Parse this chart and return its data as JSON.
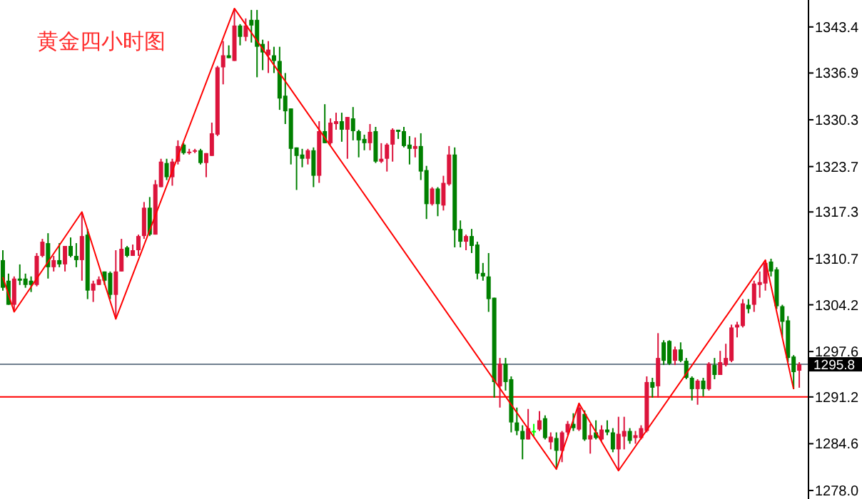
{
  "chart_data": {
    "type": "candlestick",
    "title": "黄金四小时图",
    "categories": [
      null,
      null,
      null,
      null,
      null,
      null,
      null,
      null,
      null,
      null,
      null,
      null,
      null,
      null,
      null,
      null,
      null,
      null,
      null,
      null,
      null,
      null,
      null,
      null,
      null,
      null,
      null,
      null,
      null,
      null,
      null,
      null,
      null,
      null,
      null,
      null,
      null,
      null,
      null,
      null,
      null,
      null,
      null,
      null,
      null,
      null,
      null,
      null,
      null,
      null,
      null,
      null,
      null,
      null,
      null,
      null,
      null,
      null,
      null,
      null,
      null,
      null,
      null,
      null,
      null,
      null,
      null,
      null,
      null,
      null,
      null,
      null,
      null,
      null,
      null,
      null,
      null,
      null,
      null,
      null,
      null,
      null,
      null,
      null,
      null,
      null,
      null,
      null,
      null,
      null,
      null,
      null,
      null,
      null,
      null,
      null,
      null,
      null,
      null,
      null,
      null,
      null,
      null,
      null,
      null,
      null,
      null,
      null,
      null,
      null,
      null,
      null,
      null,
      null,
      null,
      null,
      null,
      null,
      null,
      null,
      null,
      null,
      null,
      null,
      null,
      null,
      null,
      null,
      null,
      null,
      null,
      null,
      null,
      null,
      null,
      null,
      null,
      null,
      null,
      null,
      null,
      null
    ],
    "ohlc": [
      [
        1310.5,
        1311.9,
        1306.2,
        1306.6
      ],
      [
        1307.6,
        1308.6,
        1304.2,
        1304.2
      ],
      [
        1304.2,
        1308.2,
        1303.2,
        1307.9
      ],
      [
        1307.9,
        1309.9,
        1307.0,
        1307.6
      ],
      [
        1307.9,
        1308.6,
        1306.6,
        1307.0
      ],
      [
        1307.6,
        1308.2,
        1306.0,
        1307.0
      ],
      [
        1307.0,
        1311.5,
        1306.8,
        1311.1
      ],
      [
        1311.1,
        1313.5,
        1310.9,
        1313.1
      ],
      [
        1312.9,
        1314.3,
        1307.9,
        1309.5
      ],
      [
        1309.5,
        1311.1,
        1308.9,
        1310.5
      ],
      [
        1310.5,
        1312.9,
        1309.5,
        1309.9
      ],
      [
        1309.9,
        1312.5,
        1308.9,
        1312.5
      ],
      [
        1312.5,
        1313.7,
        1310.9,
        1311.1
      ],
      [
        1311.1,
        1312.9,
        1309.5,
        1310.5
      ],
      [
        1310.5,
        1317.3,
        1307.6,
        1313.9
      ],
      [
        1314.1,
        1314.9,
        1305.0,
        1306.2
      ],
      [
        1306.2,
        1307.6,
        1304.6,
        1307.2
      ],
      [
        1307.0,
        1308.2,
        1307.0,
        1307.8
      ],
      [
        1308.9,
        1308.9,
        1307.0,
        1307.6
      ],
      [
        1308.7,
        1308.9,
        1305.0,
        1305.6
      ],
      [
        1305.6,
        1311.9,
        1302.2,
        1308.9
      ],
      [
        1308.9,
        1313.5,
        1308.9,
        1312.1
      ],
      [
        1312.3,
        1312.5,
        1310.9,
        1311.1
      ],
      [
        1311.1,
        1312.7,
        1311.1,
        1311.9
      ],
      [
        1311.9,
        1314.1,
        1311.1,
        1313.9
      ],
      [
        1313.9,
        1318.7,
        1313.5,
        1317.9
      ],
      [
        1317.9,
        1319.4,
        1313.9,
        1314.1
      ],
      [
        1314.1,
        1321.8,
        1314.1,
        1321.2
      ],
      [
        1320.8,
        1324.8,
        1320.8,
        1324.4
      ],
      [
        1324.2,
        1324.8,
        1321.8,
        1322.2
      ],
      [
        1322.2,
        1324.8,
        1321.0,
        1324.4
      ],
      [
        1324.4,
        1327.4,
        1324.0,
        1326.6
      ],
      [
        1326.8,
        1327.0,
        1325.4,
        1325.6
      ],
      [
        1325.6,
        1326.2,
        1325.4,
        1325.8
      ],
      [
        1325.8,
        1326.2,
        1325.6,
        1326.0
      ],
      [
        1326.0,
        1326.2,
        1324.0,
        1324.2
      ],
      [
        1324.2,
        1325.6,
        1322.2,
        1325.6
      ],
      [
        1325.2,
        1329.9,
        1325.2,
        1328.4
      ],
      [
        1328.2,
        1337.9,
        1328.0,
        1337.7
      ],
      [
        1337.7,
        1341.4,
        1335.3,
        1339.4
      ],
      [
        1339.4,
        1340.8,
        1339.0,
        1339.0
      ],
      [
        1338.6,
        1346.0,
        1338.6,
        1343.6
      ],
      [
        1343.6,
        1343.8,
        1340.8,
        1342.0
      ],
      [
        1342.0,
        1344.6,
        1341.4,
        1343.6
      ],
      [
        1344.4,
        1345.8,
        1341.2,
        1343.6
      ],
      [
        1344.4,
        1345.8,
        1336.3,
        1340.6
      ],
      [
        1341.0,
        1341.6,
        1337.3,
        1339.8
      ],
      [
        1339.4,
        1341.4,
        1336.9,
        1340.2
      ],
      [
        1339.4,
        1340.6,
        1336.9,
        1338.6
      ],
      [
        1338.6,
        1340.6,
        1331.7,
        1333.3
      ],
      [
        1333.7,
        1336.9,
        1329.7,
        1331.5
      ],
      [
        1331.9,
        1331.9,
        1324.0,
        1326.2
      ],
      [
        1326.4,
        1326.4,
        1320.4,
        1325.2
      ],
      [
        1325.4,
        1326.2,
        1323.6,
        1324.8
      ],
      [
        1324.8,
        1326.2,
        1324.0,
        1326.0
      ],
      [
        1326.0,
        1326.4,
        1320.8,
        1322.4
      ],
      [
        1322.4,
        1330.1,
        1321.4,
        1328.7
      ],
      [
        1328.7,
        1332.5,
        1327.0,
        1327.0
      ],
      [
        1327.0,
        1330.5,
        1326.8,
        1329.9
      ],
      [
        1329.7,
        1331.3,
        1328.9,
        1330.1
      ],
      [
        1330.1,
        1331.3,
        1327.2,
        1328.9
      ],
      [
        1328.9,
        1330.7,
        1324.8,
        1330.7
      ],
      [
        1330.5,
        1332.1,
        1327.4,
        1328.7
      ],
      [
        1328.7,
        1328.9,
        1325.0,
        1327.4
      ],
      [
        1327.6,
        1328.2,
        1326.0,
        1327.0
      ],
      [
        1327.0,
        1329.7,
        1326.0,
        1328.6
      ],
      [
        1328.7,
        1329.3,
        1324.2,
        1324.4
      ],
      [
        1324.4,
        1327.0,
        1324.2,
        1324.8
      ],
      [
        1324.8,
        1327.0,
        1323.0,
        1326.8
      ],
      [
        1326.8,
        1329.1,
        1324.4,
        1328.9
      ],
      [
        1328.9,
        1328.9,
        1327.6,
        1328.6
      ],
      [
        1328.7,
        1329.3,
        1326.4,
        1326.6
      ],
      [
        1326.8,
        1328.0,
        1324.0,
        1326.2
      ],
      [
        1326.2,
        1327.8,
        1325.0,
        1326.6
      ],
      [
        1326.6,
        1328.4,
        1321.8,
        1323.0
      ],
      [
        1323.2,
        1323.8,
        1316.3,
        1318.4
      ],
      [
        1318.4,
        1320.8,
        1318.2,
        1320.6
      ],
      [
        1320.6,
        1320.8,
        1316.7,
        1318.4
      ],
      [
        1318.2,
        1322.4,
        1317.5,
        1321.4
      ],
      [
        1321.2,
        1326.6,
        1321.0,
        1325.4
      ],
      [
        1325.4,
        1326.4,
        1312.3,
        1314.7
      ],
      [
        1314.9,
        1316.1,
        1312.3,
        1313.1
      ],
      [
        1313.1,
        1314.1,
        1311.9,
        1313.9
      ],
      [
        1313.9,
        1314.9,
        1311.5,
        1312.5
      ],
      [
        1312.7,
        1313.1,
        1307.8,
        1308.6
      ],
      [
        1308.7,
        1310.1,
        1307.6,
        1308.2
      ],
      [
        1308.2,
        1311.5,
        1303.2,
        1305.0
      ],
      [
        1305.2,
        1305.2,
        1291.1,
        1293.3
      ],
      [
        1292.7,
        1296.7,
        1289.7,
        1295.9
      ],
      [
        1295.9,
        1296.7,
        1292.1,
        1293.3
      ],
      [
        1293.7,
        1294.1,
        1286.2,
        1287.6
      ],
      [
        1287.6,
        1289.7,
        1285.8,
        1286.4
      ],
      [
        1286.4,
        1287.2,
        1282.4,
        1285.2
      ],
      [
        1285.2,
        1289.5,
        1285.2,
        1286.8
      ],
      [
        1286.4,
        1287.4,
        1285.6,
        1286.4
      ],
      [
        1286.6,
        1289.2,
        1286.4,
        1287.9
      ],
      [
        1288.2,
        1288.6,
        1285.2,
        1285.4
      ],
      [
        1284.8,
        1286.2,
        1283.8,
        1285.6
      ],
      [
        1285.4,
        1286.2,
        1281.0,
        1283.6
      ],
      [
        1283.6,
        1286.4,
        1282.0,
        1286.2
      ],
      [
        1286.2,
        1287.8,
        1285.8,
        1287.4
      ],
      [
        1287.4,
        1288.9,
        1286.4,
        1286.8
      ],
      [
        1286.6,
        1290.3,
        1286.4,
        1289.7
      ],
      [
        1288.8,
        1289.3,
        1285.0,
        1285.2
      ],
      [
        1285.2,
        1287.4,
        1283.2,
        1285.8
      ],
      [
        1286.2,
        1287.9,
        1285.2,
        1285.4
      ],
      [
        1285.2,
        1287.2,
        1285.0,
        1286.6
      ],
      [
        1286.6,
        1287.9,
        1285.8,
        1286.2
      ],
      [
        1286.2,
        1286.8,
        1283.4,
        1283.8
      ],
      [
        1283.8,
        1288.4,
        1280.8,
        1286.0
      ],
      [
        1285.6,
        1288.4,
        1283.8,
        1286.4
      ],
      [
        1286.4,
        1286.8,
        1284.6,
        1285.0
      ],
      [
        1285.4,
        1286.4,
        1284.6,
        1285.8
      ],
      [
        1285.4,
        1287.2,
        1285.2,
        1286.8
      ],
      [
        1286.4,
        1294.1,
        1286.2,
        1293.3
      ],
      [
        1293.3,
        1293.9,
        1291.1,
        1292.5
      ],
      [
        1292.7,
        1300.2,
        1291.1,
        1296.7
      ],
      [
        1298.9,
        1299.2,
        1295.7,
        1296.3
      ],
      [
        1299.1,
        1299.2,
        1295.7,
        1295.9
      ],
      [
        1296.3,
        1298.3,
        1295.7,
        1297.9
      ],
      [
        1297.9,
        1298.9,
        1296.1,
        1296.3
      ],
      [
        1296.3,
        1296.7,
        1293.7,
        1293.9
      ],
      [
        1293.9,
        1294.1,
        1290.7,
        1292.3
      ],
      [
        1292.3,
        1293.7,
        1290.1,
        1293.5
      ],
      [
        1293.5,
        1293.9,
        1291.3,
        1292.3
      ],
      [
        1292.3,
        1296.1,
        1292.1,
        1295.9
      ],
      [
        1295.7,
        1296.7,
        1293.7,
        1294.3
      ],
      [
        1294.3,
        1297.7,
        1294.3,
        1296.1
      ],
      [
        1295.7,
        1298.7,
        1295.5,
        1296.7
      ],
      [
        1296.3,
        1301.4,
        1296.1,
        1301.0
      ],
      [
        1301.0,
        1301.8,
        1299.6,
        1301.4
      ],
      [
        1301.2,
        1305.0,
        1301.0,
        1304.4
      ],
      [
        1304.2,
        1305.0,
        1303.0,
        1303.6
      ],
      [
        1304.2,
        1307.6,
        1303.2,
        1307.2
      ],
      [
        1307.0,
        1308.9,
        1305.2,
        1307.4
      ],
      [
        1307.2,
        1310.5,
        1306.2,
        1310.1
      ],
      [
        1310.3,
        1310.7,
        1308.2,
        1308.9
      ],
      [
        1309.2,
        1309.5,
        1303.6,
        1304.0
      ],
      [
        1304.0,
        1304.2,
        1299.6,
        1301.8
      ],
      [
        1302.0,
        1302.6,
        1296.1,
        1296.7
      ],
      [
        1296.9,
        1297.1,
        1292.3,
        1294.7
      ],
      [
        1294.9,
        1296.1,
        1292.5,
        1295.8
      ]
    ],
    "colors": [
      "#008000",
      "#008000",
      "#dc143c",
      "#008000",
      "#008000",
      "#008000",
      "#dc143c",
      "#dc143c",
      "#008000",
      "#dc143c",
      "#008000",
      "#dc143c",
      "#008000",
      "#008000",
      "#dc143c",
      "#008000",
      "#dc143c",
      "#dc143c",
      "#008000",
      "#008000",
      "#dc143c",
      "#dc143c",
      "#008000",
      "#dc143c",
      "#dc143c",
      "#dc143c",
      "#008000",
      "#dc143c",
      "#dc143c",
      "#008000",
      "#dc143c",
      "#dc143c",
      "#008000",
      "#dc143c",
      "#dc143c",
      "#008000",
      "#dc143c",
      "#dc143c",
      "#dc143c",
      "#dc143c",
      "#008000",
      "#dc143c",
      "#008000",
      "#dc143c",
      "#008000",
      "#008000",
      "#008000",
      "#dc143c",
      "#008000",
      "#008000",
      "#008000",
      "#008000",
      "#008000",
      "#008000",
      "#dc143c",
      "#008000",
      "#dc143c",
      "#008000",
      "#dc143c",
      "#dc143c",
      "#008000",
      "#dc143c",
      "#008000",
      "#008000",
      "#008000",
      "#dc143c",
      "#008000",
      "#dc143c",
      "#dc143c",
      "#dc143c",
      "#008000",
      "#008000",
      "#008000",
      "#dc143c",
      "#008000",
      "#008000",
      "#dc143c",
      "#008000",
      "#dc143c",
      "#dc143c",
      "#008000",
      "#008000",
      "#dc143c",
      "#008000",
      "#008000",
      "#008000",
      "#008000",
      "#008000",
      "#dc143c",
      "#008000",
      "#008000",
      "#008000",
      "#008000",
      "#dc143c",
      "#00ff00",
      "#dc143c",
      "#008000",
      "#dc143c",
      "#008000",
      "#dc143c",
      "#dc143c",
      "#008000",
      "#dc143c",
      "#008000",
      "#dc143c",
      "#008000",
      "#dc143c",
      "#008000",
      "#008000",
      "#dc143c",
      "#dc143c",
      "#008000",
      "#dc143c",
      "#dc143c",
      "#dc143c",
      "#008000",
      "#dc143c",
      "#008000",
      "#008000",
      "#dc143c",
      "#008000",
      "#008000",
      "#008000",
      "#dc143c",
      "#008000",
      "#dc143c",
      "#008000",
      "#dc143c",
      "#dc143c",
      "#dc143c",
      "#dc143c",
      "#dc143c",
      "#008000",
      "#dc143c",
      "#dc143c",
      "#dc143c",
      "#008000",
      "#008000",
      "#008000",
      "#008000",
      "#008000",
      "#dc143c"
    ],
    "series": [
      {
        "type": "line",
        "color": "#ff0000",
        "values": [
          1308.1,
          null,
          1303.2,
          null,
          null,
          null,
          null,
          null,
          null,
          null,
          null,
          null,
          null,
          null,
          1317.3,
          null,
          null,
          null,
          null,
          null,
          1302.2,
          null,
          null,
          null,
          null,
          null,
          null,
          null,
          null,
          null,
          null,
          null,
          null,
          null,
          null,
          null,
          null,
          null,
          null,
          null,
          null,
          1346.0,
          null,
          null,
          null,
          null,
          null,
          null,
          null,
          null,
          null,
          null,
          null,
          null,
          null,
          null,
          null,
          null,
          null,
          null,
          null,
          null,
          null,
          null,
          null,
          null,
          null,
          null,
          null,
          null,
          null,
          null,
          null,
          null,
          null,
          null,
          null,
          null,
          null,
          null,
          null,
          null,
          null,
          null,
          null,
          null,
          null,
          null,
          null,
          null,
          null,
          null,
          null,
          null,
          null,
          null,
          null,
          null,
          1281.0,
          null,
          null,
          null,
          1290.3,
          null,
          null,
          null,
          null,
          null,
          null,
          1280.8,
          null,
          null,
          null,
          null,
          null,
          null,
          null,
          null,
          null,
          null,
          null,
          null,
          null,
          null,
          null,
          null,
          null,
          null,
          null,
          null,
          null,
          null,
          null,
          null,
          null,
          1310.5,
          null,
          null,
          null,
          null,
          1292.3,
          null
        ]
      }
    ],
    "ref_lines": [
      {
        "axis": "y",
        "value": 1295.8,
        "label": "1295.8",
        "color": "#708090"
      },
      {
        "axis": "y",
        "value": 1291.2,
        "color": "#ff0000"
      }
    ],
    "ylim": [
      1276.8,
      1347.2
    ],
    "yticks": [
      1343.4,
      1336.9,
      1330.3,
      1323.7,
      1317.3,
      1310.7,
      1304.2,
      1297.6,
      1291.2,
      1284.6,
      {
        "value": 1278.0,
        "label": "1278.0"
      }
    ],
    "tick_labels": "y"
  }
}
